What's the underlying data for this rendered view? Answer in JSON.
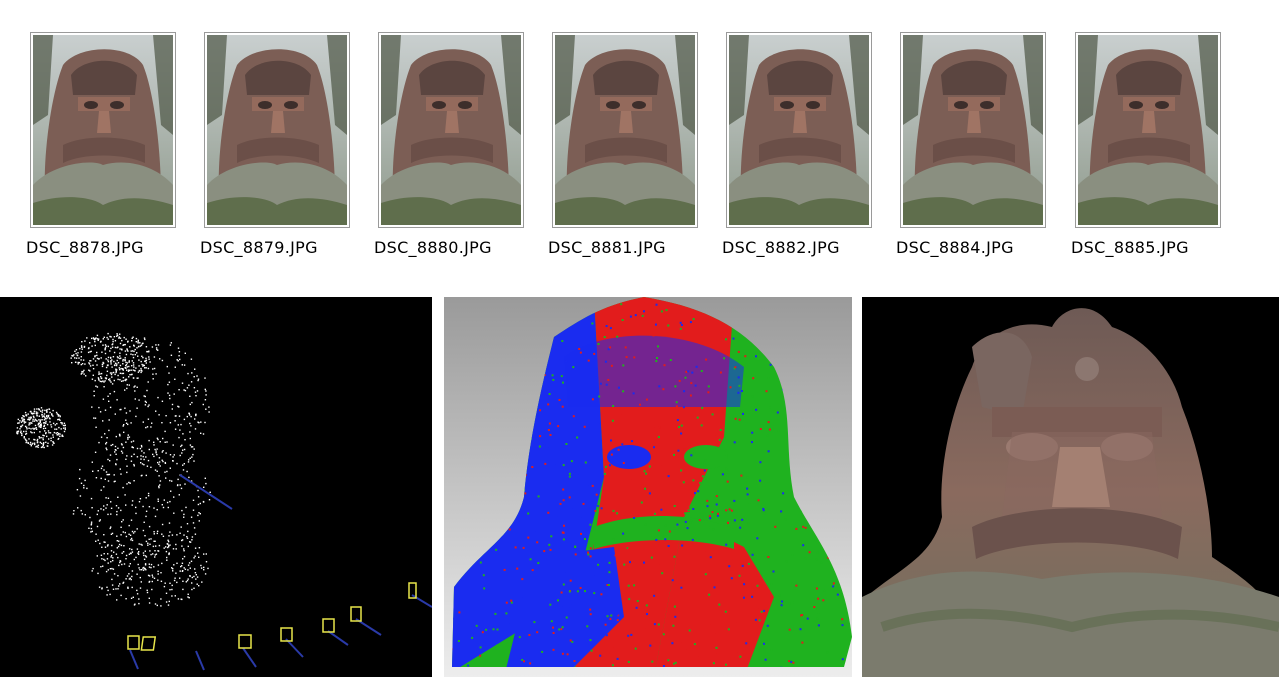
{
  "thumbnails": [
    {
      "filename": "DSC_8878.JPG"
    },
    {
      "filename": "DSC_8879.JPG"
    },
    {
      "filename": "DSC_8880.JPG"
    },
    {
      "filename": "DSC_8881.JPG"
    },
    {
      "filename": "DSC_8882.JPG"
    },
    {
      "filename": "DSC_8884.JPG"
    },
    {
      "filename": "DSC_8885.JPG"
    }
  ],
  "panels": {
    "sparse_point_cloud": {
      "background": "#000000",
      "camera_frustum_color": "#e8e64a",
      "camera_ray_color": "#2a3aa8"
    },
    "dense_point_cloud": {
      "colors": [
        "#1a2cf0",
        "#e21c1c",
        "#1fb21f"
      ]
    },
    "textured_model": {
      "background": "#000000",
      "stone_color": "#8a6a5e"
    }
  }
}
